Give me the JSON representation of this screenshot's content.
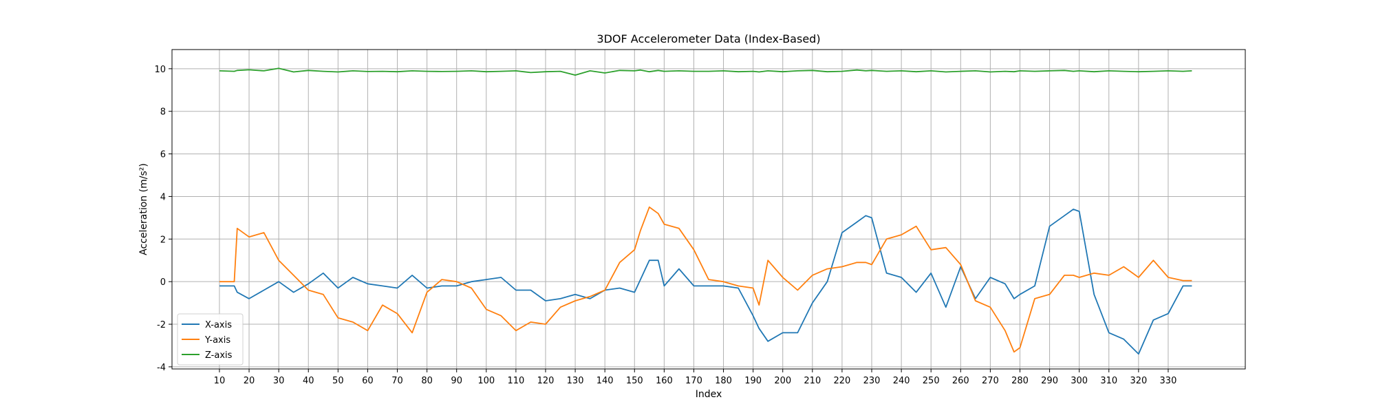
{
  "chart_data": {
    "type": "line",
    "title": "3DOF Accelerometer Data (Index-Based)",
    "xlabel": "Index",
    "ylabel": "Acceleration (m/s²)",
    "xlim": [
      -6,
      356
    ],
    "ylim": [
      -4.1,
      10.9
    ],
    "x_ticks": [
      10,
      20,
      30,
      40,
      50,
      60,
      70,
      80,
      90,
      100,
      110,
      120,
      130,
      140,
      150,
      160,
      170,
      180,
      190,
      200,
      210,
      220,
      230,
      240,
      250,
      260,
      270,
      280,
      290,
      300,
      310,
      320,
      330
    ],
    "y_ticks": [
      -4,
      -2,
      0,
      2,
      4,
      6,
      8,
      10
    ],
    "grid": true,
    "legend_position": "lower-left",
    "x": [
      10,
      15,
      16,
      20,
      25,
      30,
      35,
      40,
      45,
      50,
      55,
      60,
      65,
      70,
      75,
      80,
      85,
      90,
      95,
      100,
      105,
      110,
      115,
      120,
      125,
      130,
      135,
      140,
      145,
      150,
      152,
      155,
      158,
      160,
      165,
      170,
      175,
      180,
      185,
      190,
      192,
      195,
      200,
      205,
      210,
      215,
      220,
      225,
      228,
      230,
      235,
      240,
      245,
      250,
      255,
      260,
      265,
      270,
      275,
      278,
      280,
      285,
      290,
      295,
      298,
      300,
      305,
      310,
      315,
      320,
      325,
      330,
      335,
      338
    ],
    "series": [
      {
        "name": "X-axis",
        "color": "#1f77b4",
        "values": [
          -0.2,
          -0.2,
          -0.5,
          -0.8,
          -0.4,
          0.0,
          -0.5,
          -0.1,
          0.4,
          -0.3,
          0.2,
          -0.1,
          -0.2,
          -0.3,
          0.3,
          -0.3,
          -0.2,
          -0.2,
          0.0,
          0.1,
          0.2,
          -0.4,
          -0.4,
          -0.9,
          -0.8,
          -0.6,
          -0.8,
          -0.4,
          -0.3,
          -0.5,
          0.1,
          1.0,
          1.0,
          -0.2,
          0.6,
          -0.2,
          -0.2,
          -0.2,
          -0.3,
          -1.6,
          -2.2,
          -2.8,
          -2.4,
          -2.4,
          -1.0,
          0.0,
          2.3,
          2.8,
          3.1,
          3.0,
          0.4,
          0.2,
          -0.5,
          0.4,
          -1.2,
          0.7,
          -0.8,
          0.2,
          -0.1,
          -0.8,
          -0.6,
          -0.2,
          2.6,
          3.1,
          3.4,
          3.3,
          -0.6,
          -2.4,
          -2.7,
          -3.4,
          -1.8,
          -1.5,
          -0.2,
          -0.2
        ]
      },
      {
        "name": "Y-axis",
        "color": "#ff7f0e",
        "values": [
          0.0,
          0.0,
          2.5,
          2.1,
          2.3,
          1.0,
          0.3,
          -0.4,
          -0.6,
          -1.7,
          -1.9,
          -2.3,
          -1.1,
          -1.5,
          -2.4,
          -0.5,
          0.1,
          0.0,
          -0.3,
          -1.3,
          -1.6,
          -2.3,
          -1.9,
          -2.0,
          -1.2,
          -0.9,
          -0.7,
          -0.4,
          0.9,
          1.5,
          2.4,
          3.5,
          3.2,
          2.7,
          2.5,
          1.5,
          0.1,
          0.0,
          -0.2,
          -0.3,
          -1.1,
          1.0,
          0.2,
          -0.4,
          0.3,
          0.6,
          0.7,
          0.9,
          0.9,
          0.8,
          2.0,
          2.2,
          2.6,
          1.5,
          1.6,
          0.8,
          -0.9,
          -1.2,
          -2.3,
          -3.3,
          -3.1,
          -0.8,
          -0.6,
          0.3,
          0.3,
          0.2,
          0.4,
          0.3,
          0.7,
          0.2,
          1.0,
          0.2,
          0.05,
          0.05
        ]
      },
      {
        "name": "Z-axis",
        "color": "#2ca02c",
        "values": [
          9.9,
          9.88,
          9.92,
          9.95,
          9.9,
          10.02,
          9.85,
          9.92,
          9.88,
          9.85,
          9.9,
          9.87,
          9.88,
          9.86,
          9.9,
          9.88,
          9.87,
          9.88,
          9.9,
          9.86,
          9.88,
          9.9,
          9.82,
          9.86,
          9.88,
          9.7,
          9.9,
          9.8,
          9.92,
          9.9,
          9.94,
          9.86,
          9.92,
          9.88,
          9.9,
          9.88,
          9.88,
          9.9,
          9.86,
          9.88,
          9.85,
          9.9,
          9.86,
          9.9,
          9.92,
          9.86,
          9.88,
          9.94,
          9.9,
          9.92,
          9.88,
          9.9,
          9.86,
          9.9,
          9.85,
          9.88,
          9.9,
          9.85,
          9.88,
          9.86,
          9.9,
          9.88,
          9.9,
          9.92,
          9.88,
          9.9,
          9.86,
          9.9,
          9.88,
          9.86,
          9.88,
          9.9,
          9.88,
          9.9
        ]
      }
    ]
  }
}
